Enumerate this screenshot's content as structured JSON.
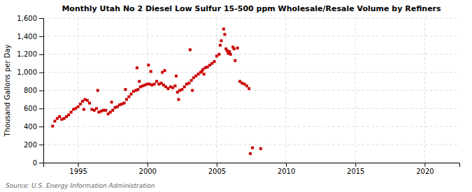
{
  "chart_data": {
    "type": "scatter",
    "title": "Monthly Utah No 2 Diesel Low Sulfur 15-500 ppm Wholesale/Resale Volume by Refiners",
    "y_label": "Thousand Gallons per Day",
    "annotations": [
      "Source: U.S. Energy Information Administration"
    ],
    "color": "#cc0000",
    "marker": "square",
    "grid": true,
    "xlim": [
      1992.5,
      2022.5
    ],
    "xticks": [
      1995,
      2000,
      2005,
      2010,
      2015,
      2020
    ],
    "ylim": [
      0,
      1600
    ],
    "yticks": [
      0,
      200,
      400,
      600,
      800,
      {
        "value": 1000,
        "label": "1,000"
      },
      {
        "value": 1200,
        "label": "1,200"
      },
      {
        "value": 1400,
        "label": "1,400"
      },
      {
        "value": 1600,
        "label": "1,600"
      }
    ],
    "x": [
      1993.17,
      1993.33,
      1993.5,
      1993.67,
      1993.83,
      1994.0,
      1994.17,
      1994.33,
      1994.5,
      1994.67,
      1994.83,
      1995.0,
      1995.17,
      1995.33,
      1995.5,
      1995.67,
      1995.83,
      1996.0,
      1996.17,
      1996.33,
      1996.5,
      1996.67,
      1996.83,
      1997.0,
      1997.17,
      1997.33,
      1997.5,
      1997.67,
      1997.83,
      1998.0,
      1998.17,
      1998.33,
      1998.5,
      1998.67,
      1998.83,
      1999.0,
      1999.17,
      1999.33,
      1999.5,
      1999.67,
      1999.83,
      2000.0,
      2000.17,
      2000.33,
      2000.5,
      2000.67,
      2000.83,
      2001.0,
      2001.17,
      2001.33,
      2001.5,
      2001.67,
      2001.83,
      2002.0,
      2002.17,
      2002.33,
      2002.5,
      2002.67,
      2002.83,
      2003.0,
      2003.17,
      2003.33,
      2003.5,
      2003.67,
      2003.83,
      2003.92,
      2004.0,
      2004.17,
      2004.33,
      2004.5,
      2004.67,
      2004.83,
      2005.0,
      2005.17,
      2005.25,
      2005.33,
      2005.5,
      2005.58,
      2005.67,
      2005.75,
      2005.83,
      2005.92,
      2006.0,
      2006.17,
      2006.25,
      2006.33,
      2006.5,
      2006.67,
      2006.83,
      2007.0,
      2007.17,
      2007.33,
      2007.42,
      2007.58,
      2008.17,
      1999.25,
      2000.08,
      2001.08,
      2002.08,
      2003.08,
      2004.08,
      2003.25,
      2002.25,
      2001.25,
      2000.25,
      1999.42,
      1998.42,
      1997.42,
      1996.42,
      1995.42
    ],
    "values": [
      405,
      460,
      490,
      510,
      480,
      490,
      510,
      530,
      560,
      590,
      600,
      620,
      650,
      680,
      700,
      690,
      660,
      590,
      580,
      600,
      560,
      570,
      580,
      580,
      540,
      560,
      580,
      610,
      620,
      640,
      650,
      660,
      700,
      730,
      760,
      790,
      800,
      810,
      840,
      850,
      860,
      870,
      870,
      860,
      870,
      900,
      870,
      880,
      860,
      840,
      820,
      840,
      830,
      850,
      780,
      800,
      810,
      840,
      870,
      880,
      910,
      940,
      960,
      980,
      1000,
      1010,
      1030,
      1050,
      1060,
      1080,
      1100,
      1120,
      1180,
      1200,
      1300,
      1350,
      1480,
      1420,
      1260,
      1240,
      1210,
      1230,
      1200,
      1280,
      1260,
      1130,
      1270,
      900,
      880,
      870,
      850,
      820,
      100,
      165,
      155,
      1050,
      1080,
      1000,
      960,
      1250,
      980,
      800,
      700,
      1020,
      1010,
      900,
      810,
      670,
      800,
      590
    ]
  }
}
